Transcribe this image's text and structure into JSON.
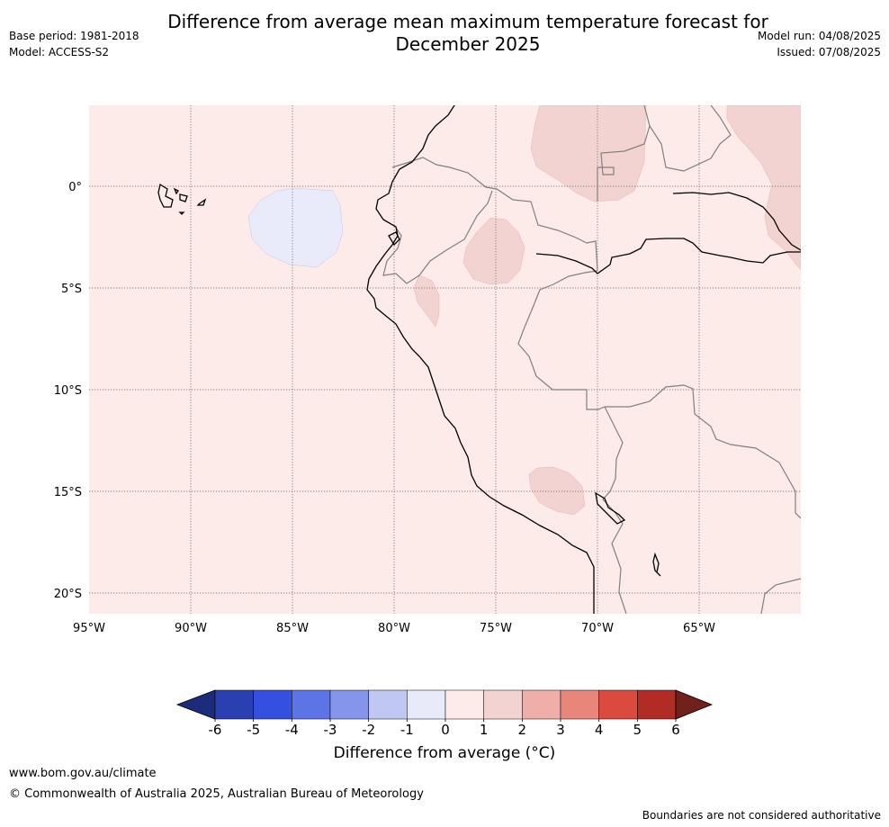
{
  "header": {
    "title_line1": "Difference from average mean maximum temperature forecast for",
    "title_line2": "December 2025",
    "base_period": "Base period: 1981-2018",
    "model": "Model: ACCESS-S2",
    "model_run": "Model run: 04/08/2025",
    "issued": "Issued: 07/08/2025"
  },
  "map": {
    "longitude_labels": [
      "95°W",
      "90°W",
      "85°W",
      "80°W",
      "75°W",
      "70°W",
      "65°W"
    ],
    "latitude_labels": [
      "0°",
      "5°S",
      "10°S",
      "15°S",
      "20°S"
    ],
    "background_class_color": "#fcebe9",
    "anomaly_colors": {
      "slight_warm": "#f3d3d2",
      "slight_cool": "#e9ebfb"
    }
  },
  "colorbar": {
    "labels": [
      "-6",
      "-5",
      "-4",
      "-3",
      "-2",
      "-1",
      "0",
      "1",
      "2",
      "3",
      "4",
      "5",
      "6"
    ],
    "colors": [
      "#1c2c7a",
      "#2a3fb0",
      "#3550e0",
      "#5c74e6",
      "#8596ea",
      "#c0c7f2",
      "#e8eafa",
      "#fcebe9",
      "#f3d3d2",
      "#efaea7",
      "#e8867c",
      "#da4a3f",
      "#b12c24",
      "#72201b"
    ],
    "title": "Difference from average ($^\\circ$C)",
    "title_display": "Difference from average (°C)"
  },
  "footer": {
    "website": "www.bom.gov.au/climate",
    "copyright": "© Commonwealth of Australia 2025, Australian Bureau of Meteorology",
    "disclaimer": "Boundaries are not considered authoritative"
  }
}
